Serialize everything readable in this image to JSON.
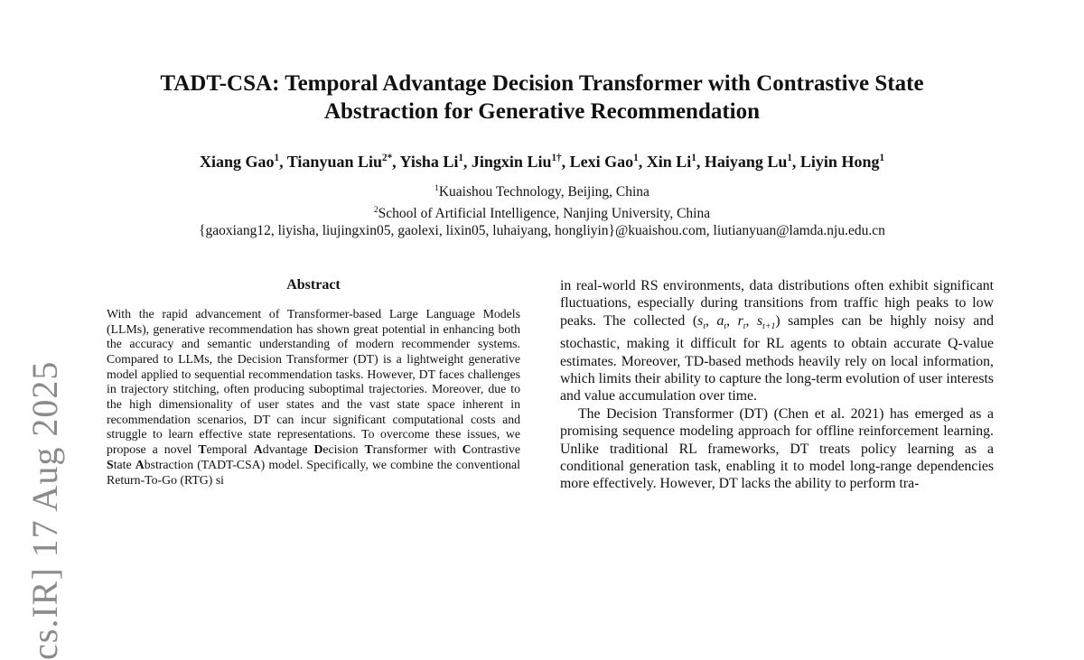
{
  "watermark": {
    "text": "cs.IR] 17 Aug 2025",
    "color": "#8b8b8b"
  },
  "header": {
    "title_lines": [
      "TADT-CSA: Temporal Advantage Decision Transformer with Contrastive State",
      "Abstraction for Generative Recommendation"
    ],
    "authors": [
      {
        "name": "Xiang Gao",
        "sup": "1"
      },
      {
        "name": "Tianyuan Liu",
        "sup": "2*"
      },
      {
        "name": "Yisha Li",
        "sup": "1"
      },
      {
        "name": "Jingxin Liu",
        "sup": "1†"
      },
      {
        "name": "Lexi Gao",
        "sup": "1"
      },
      {
        "name": "Xin Li",
        "sup": "1"
      },
      {
        "name": "Haiyang Lu",
        "sup": "1"
      },
      {
        "name": "Liyin Hong",
        "sup": "1"
      }
    ],
    "affiliations": [
      {
        "sup": "1",
        "text": "Kuaishou Technology, Beijing, China"
      },
      {
        "sup": "2",
        "text": "School of Artificial Intelligence, Nanjing University, China"
      }
    ],
    "emails": "{gaoxiang12, liyisha, liujingxin05, gaolexi, lixin05, luhaiyang, hongliyin}@kuaishou.com, liutianyuan@lamda.nju.edu.cn"
  },
  "abstract": {
    "heading": "Abstract",
    "segments": [
      {
        "t": "With the rapid advancement of Transformer-based Large Language Models (LLMs), generative recommendation has shown great potential in enhancing both the accuracy and semantic understanding of modern recommender systems. Compared to LLMs, the Decision Transformer (DT) is a lightweight generative model applied to sequential recommendation tasks. However, DT faces challenges in trajectory stitching, often producing suboptimal trajectories. Moreover, due to the high dimensionality of user states and the vast state space inherent in recommendation scenarios, DT can incur significant computational costs and struggle to learn effective state representations. To overcome these issues, we propose a novel "
      },
      {
        "t": "T",
        "b": true
      },
      {
        "t": "emporal "
      },
      {
        "t": "A",
        "b": true
      },
      {
        "t": "dvantage "
      },
      {
        "t": "D",
        "b": true
      },
      {
        "t": "ecision "
      },
      {
        "t": "T",
        "b": true
      },
      {
        "t": "ransformer with "
      },
      {
        "t": "C",
        "b": true
      },
      {
        "t": "ontrastive "
      },
      {
        "t": "S",
        "b": true
      },
      {
        "t": "tate "
      },
      {
        "t": "A",
        "b": true
      },
      {
        "t": "bstraction (TADT-CSA) model. Specifically, we combine the conventional Return-To-Go (RTG) si"
      }
    ]
  },
  "right_column": {
    "paragraphs": [
      {
        "segments": [
          {
            "t": "in real-world RS environments, data distributions often exhibit significant fluctuations, especially during transitions from traffic high peaks to low peaks. The collected ("
          },
          {
            "t": "s",
            "i": true
          },
          {
            "t": "t",
            "sub": true,
            "i": true
          },
          {
            "t": ", "
          },
          {
            "t": "a",
            "i": true
          },
          {
            "t": "t",
            "sub": true,
            "i": true
          },
          {
            "t": ", "
          },
          {
            "t": "r",
            "i": true
          },
          {
            "t": "t",
            "sub": true,
            "i": true
          },
          {
            "t": ", "
          },
          {
            "t": "s",
            "i": true
          },
          {
            "t": "t+1",
            "sub": true,
            "i": true
          },
          {
            "t": ") samples can be highly noisy and stochastic, making it difficult for RL agents to obtain accurate Q-value estimates. Moreover, TD-based methods heavily rely on local information, which limits their ability to capture the long-term evolution of user interests and value accumulation over time."
          }
        ]
      },
      {
        "segments": [
          {
            "t": "The Decision Transformer (DT) (Chen et al. 2021) has emerged as a promising sequence modeling approach for offline reinforcement learning. Unlike traditional RL frameworks, DT treats policy learning as a conditional generation task, enabling it to model long-range dependencies more effectively. However, DT lacks the ability to perform tra-"
          }
        ]
      }
    ]
  }
}
